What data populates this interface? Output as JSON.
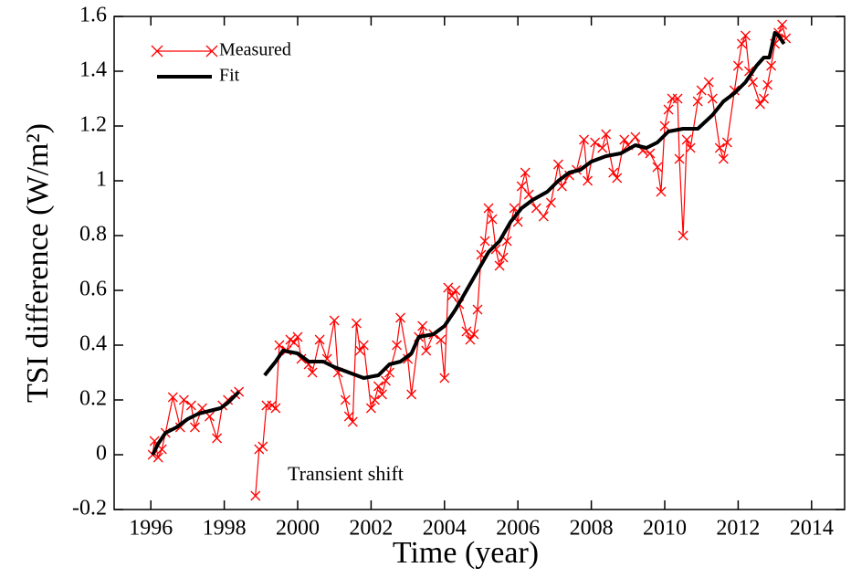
{
  "chart_data": {
    "type": "line",
    "xlabel": "Time (year)",
    "ylabel": "TSI difference (W/m²)",
    "annotation": "Transient shift",
    "xlim": [
      1995,
      2014.9
    ],
    "ylim": [
      -0.2,
      1.6
    ],
    "xticks": [
      1996,
      1998,
      2000,
      2002,
      2004,
      2006,
      2008,
      2010,
      2012,
      2014
    ],
    "yticks": [
      -0.2,
      0,
      0.2,
      0.4,
      0.6,
      0.8,
      1,
      1.2,
      1.4,
      1.6
    ],
    "legend": "upper left",
    "series": [
      {
        "name": "Measured",
        "color": "#ff0000",
        "marker": "x",
        "x": [
          1996.05,
          1996.1,
          1996.2,
          1996.3,
          1996.4,
          1996.6,
          1996.8,
          1996.9,
          1997.1,
          1997.2,
          1997.4,
          1997.6,
          1997.8,
          1997.95,
          1998.1,
          1998.3,
          1998.4,
          1998.6,
          1998.85,
          1998.95,
          1999.05,
          1999.15,
          1999.3,
          1999.4,
          1999.5,
          1999.7,
          1999.8,
          1999.9,
          2000.0,
          2000.1,
          2000.3,
          2000.4,
          2000.6,
          2000.8,
          2001.0,
          2001.1,
          2001.3,
          2001.4,
          2001.5,
          2001.6,
          2001.7,
          2001.8,
          2002.0,
          2002.1,
          2002.2,
          2002.3,
          2002.4,
          2002.5,
          2002.7,
          2002.8,
          2003.0,
          2003.1,
          2003.3,
          2003.4,
          2003.5,
          2003.7,
          2003.9,
          2004.0,
          2004.1,
          2004.2,
          2004.3,
          2004.4,
          2004.6,
          2004.7,
          2004.8,
          2004.9,
          2005.0,
          2005.1,
          2005.2,
          2005.3,
          2005.4,
          2005.5,
          2005.6,
          2005.7,
          2005.9,
          2006.0,
          2006.1,
          2006.2,
          2006.3,
          2006.5,
          2006.7,
          2006.9,
          2007.1,
          2007.2,
          2007.4,
          2007.6,
          2007.8,
          2007.9,
          2008.1,
          2008.3,
          2008.4,
          2008.6,
          2008.7,
          2008.9,
          2009.0,
          2009.2,
          2009.4,
          2009.6,
          2009.8,
          2009.9,
          2010.0,
          2010.1,
          2010.2,
          2010.35,
          2010.4,
          2010.5,
          2010.6,
          2010.7,
          2010.9,
          2011.0,
          2011.2,
          2011.3,
          2011.5,
          2011.6,
          2011.7,
          2011.9,
          2012.0,
          2012.1,
          2012.2,
          2012.3,
          2012.4,
          2012.6,
          2012.7,
          2012.8,
          2012.9,
          2013.0,
          2013.1,
          2013.2,
          2013.3
        ],
        "values": [
          0.0,
          0.05,
          -0.01,
          0.02,
          0.08,
          0.21,
          0.1,
          0.2,
          0.18,
          0.1,
          0.17,
          0.14,
          0.06,
          0.18,
          0.2,
          0.22,
          0.23,
          null,
          -0.15,
          0.02,
          0.03,
          0.18,
          0.18,
          0.17,
          0.4,
          0.38,
          0.42,
          0.41,
          0.43,
          0.35,
          0.33,
          0.3,
          0.42,
          0.35,
          0.49,
          0.3,
          0.2,
          0.14,
          0.12,
          0.48,
          0.38,
          0.4,
          0.17,
          0.2,
          0.25,
          0.22,
          0.27,
          0.3,
          0.4,
          0.5,
          0.35,
          0.22,
          0.43,
          0.47,
          0.38,
          0.44,
          0.42,
          0.28,
          0.61,
          0.58,
          0.6,
          0.55,
          0.45,
          0.42,
          0.44,
          0.53,
          0.73,
          0.78,
          0.9,
          0.86,
          0.75,
          0.69,
          0.72,
          0.78,
          0.9,
          0.85,
          0.98,
          1.03,
          0.95,
          0.9,
          0.87,
          0.92,
          1.06,
          0.98,
          1.02,
          1.04,
          1.15,
          1.0,
          1.14,
          1.12,
          1.17,
          1.03,
          1.01,
          1.15,
          1.13,
          1.16,
          1.11,
          1.1,
          1.05,
          0.96,
          1.2,
          1.26,
          1.3,
          1.3,
          1.08,
          0.8,
          1.15,
          1.12,
          1.29,
          1.33,
          1.36,
          1.3,
          1.12,
          1.08,
          1.14,
          1.33,
          1.42,
          1.5,
          1.53,
          1.4,
          1.36,
          1.28,
          1.3,
          1.35,
          1.42,
          1.5,
          1.54,
          1.57,
          1.52
        ]
      },
      {
        "name": "Fit",
        "color": "#000000",
        "x": [
          1996.05,
          1996.2,
          1996.4,
          1996.7,
          1997.0,
          1997.3,
          1997.6,
          1997.9,
          1998.1,
          1998.4,
          1998.7,
          1999.1,
          1999.4,
          1999.6,
          2000.0,
          2000.3,
          2000.7,
          2001.0,
          2001.4,
          2001.8,
          2002.2,
          2002.5,
          2002.8,
          2003.1,
          2003.3,
          2003.7,
          2004.0,
          2004.3,
          2004.6,
          2004.9,
          2005.2,
          2005.5,
          2005.8,
          2006.1,
          2006.4,
          2006.8,
          2007.1,
          2007.4,
          2007.7,
          2008.0,
          2008.4,
          2008.8,
          2009.2,
          2009.5,
          2009.8,
          2010.1,
          2010.5,
          2010.9,
          2011.3,
          2011.6,
          2011.9,
          2012.2,
          2012.5,
          2012.7,
          2012.85,
          2013.0,
          2013.1,
          2013.25
        ],
        "values": [
          0.0,
          0.04,
          0.08,
          0.1,
          0.13,
          0.15,
          0.16,
          0.17,
          0.19,
          0.23,
          null,
          0.29,
          0.34,
          0.38,
          0.37,
          0.34,
          0.34,
          0.32,
          0.3,
          0.28,
          0.29,
          0.33,
          0.34,
          0.37,
          0.43,
          0.44,
          0.47,
          0.53,
          0.6,
          0.67,
          0.74,
          0.78,
          0.85,
          0.9,
          0.93,
          0.96,
          1.0,
          1.03,
          1.04,
          1.07,
          1.09,
          1.1,
          1.13,
          1.12,
          1.14,
          1.18,
          1.19,
          1.19,
          1.24,
          1.29,
          1.32,
          1.36,
          1.42,
          1.45,
          1.45,
          1.54,
          1.53,
          1.5
        ]
      }
    ]
  }
}
